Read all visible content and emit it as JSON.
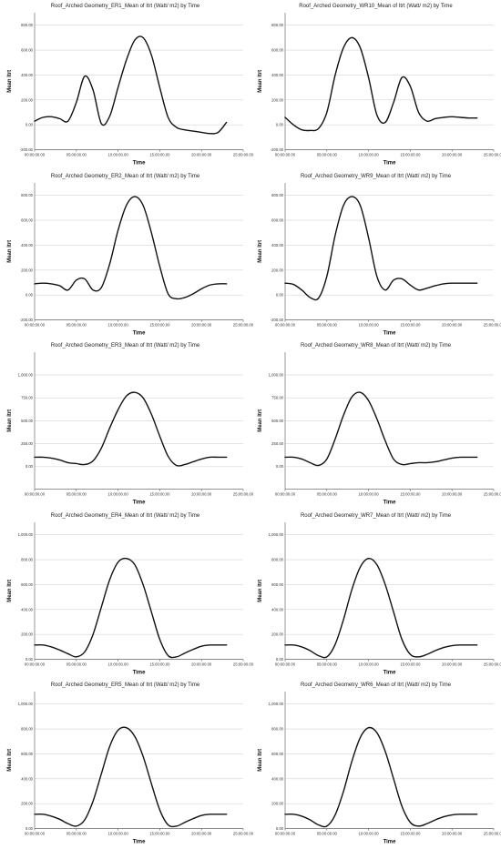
{
  "chart_data": [
    {
      "type": "line",
      "title": "Roof_Arched Geometry_ER1_Mean of Itrt (Watt/ m2) by Time",
      "xlabel": "Time",
      "ylabel": "Mean Itrt",
      "xlim": [
        0,
        25
      ],
      "ylim": [
        -200,
        900
      ],
      "yticks": [
        -200,
        0,
        200,
        400,
        600,
        800
      ],
      "ytick_labels": [
        "-200.00",
        "0.00",
        "200.00",
        "400.00",
        "600.00",
        "800.00"
      ],
      "xticks": [
        0,
        5,
        10,
        15,
        20,
        25
      ],
      "xtick_labels": [
        "00:00:00.00",
        "05:00:00.00",
        "10:00:00.00",
        "15:00:00.00",
        "20:00:00.00",
        "25:00:00.00"
      ],
      "grid": true,
      "x": [
        0,
        1,
        2,
        3,
        4,
        5,
        6,
        7,
        8,
        9,
        10,
        11,
        12,
        13,
        14,
        15,
        16,
        17,
        18,
        19,
        20,
        21,
        22,
        23
      ],
      "y": [
        30,
        60,
        65,
        50,
        30,
        180,
        390,
        280,
        10,
        70,
        300,
        520,
        680,
        700,
        560,
        300,
        60,
        -20,
        -40,
        -50,
        -60,
        -70,
        -60,
        20
      ]
    },
    {
      "type": "line",
      "title": "Roof_Arched Geometry_WR10_Mean of Itrt (Watt/ m2) by Time",
      "xlabel": "Time",
      "ylabel": "Mean Itrt",
      "xlim": [
        0,
        25
      ],
      "ylim": [
        -200,
        900
      ],
      "yticks": [
        -200,
        0,
        200,
        400,
        600,
        800
      ],
      "ytick_labels": [
        "-200.00",
        "0.00",
        "200.00",
        "400.00",
        "600.00",
        "800.00"
      ],
      "xticks": [
        0,
        5,
        10,
        15,
        20,
        25
      ],
      "xtick_labels": [
        "00:00:00.00",
        "05:00:00.00",
        "10:00:00.00",
        "15:00:00.00",
        "20:00:00.00",
        "25:00:00.00"
      ],
      "grid": true,
      "x": [
        0,
        1,
        2,
        3,
        4,
        5,
        6,
        7,
        8,
        9,
        10,
        11,
        12,
        13,
        14,
        15,
        16,
        17,
        18,
        19,
        20,
        21,
        22,
        23
      ],
      "y": [
        60,
        0,
        -40,
        -45,
        -30,
        100,
        400,
        620,
        700,
        620,
        380,
        80,
        20,
        180,
        380,
        310,
        100,
        30,
        50,
        60,
        65,
        60,
        55,
        55
      ]
    },
    {
      "type": "line",
      "title": "Roof_Arched Geometry_ER2_Mean of Itrt (Watt/ m2) by Time",
      "xlabel": "Time",
      "ylabel": "Mean Itrt",
      "xlim": [
        0,
        25
      ],
      "ylim": [
        -200,
        900
      ],
      "yticks": [
        -200,
        0,
        200,
        400,
        600,
        800
      ],
      "ytick_labels": [
        "-200.00",
        "0.00",
        "200.00",
        "400.00",
        "600.00",
        "800.00"
      ],
      "xticks": [
        0,
        5,
        10,
        15,
        20,
        25
      ],
      "xtick_labels": [
        "00:00:00.00",
        "05:00:00.00",
        "10:00:00.00",
        "15:00:00.00",
        "20:00:00.00",
        "25:00:00.00"
      ],
      "grid": true,
      "x": [
        0,
        1,
        2,
        3,
        4,
        5,
        6,
        7,
        8,
        9,
        10,
        11,
        12,
        13,
        14,
        15,
        16,
        17,
        18,
        19,
        20,
        21,
        22,
        23
      ],
      "y": [
        90,
        95,
        90,
        75,
        40,
        120,
        130,
        40,
        60,
        250,
        520,
        720,
        790,
        720,
        500,
        230,
        10,
        -30,
        -20,
        10,
        50,
        80,
        90,
        90
      ]
    },
    {
      "type": "line",
      "title": "Roof_Arched Geometry_WR9_Mean of Itrt (Watt/ m2) by Time",
      "xlabel": "Time",
      "ylabel": "Mean Itrt",
      "xlim": [
        0,
        25
      ],
      "ylim": [
        -200,
        900
      ],
      "yticks": [
        -200,
        0,
        200,
        400,
        600,
        800
      ],
      "ytick_labels": [
        "-200.00",
        "0.00",
        "200.00",
        "400.00",
        "600.00",
        "800.00"
      ],
      "xticks": [
        0,
        5,
        10,
        15,
        20,
        25
      ],
      "xtick_labels": [
        "00:00:00.00",
        "05:00:00.00",
        "10:00:00.00",
        "15:00:00.00",
        "20:00:00.00",
        "25:00:00.00"
      ],
      "grid": true,
      "x": [
        0,
        1,
        2,
        3,
        4,
        5,
        6,
        7,
        8,
        9,
        10,
        11,
        12,
        13,
        14,
        15,
        16,
        17,
        18,
        19,
        20,
        21,
        22,
        23
      ],
      "y": [
        95,
        85,
        40,
        -20,
        -25,
        150,
        480,
        720,
        790,
        720,
        460,
        150,
        40,
        120,
        130,
        80,
        40,
        55,
        75,
        90,
        95,
        95,
        95,
        95
      ]
    },
    {
      "type": "line",
      "title": "Roof_Arched Geometry_ER3_Mean of Itrt (Watt/ m2) by Time",
      "xlabel": "Time",
      "ylabel": "Mean Itrt",
      "xlim": [
        0,
        25
      ],
      "ylim": [
        -250,
        1250
      ],
      "yticks": [
        0,
        250,
        500,
        750,
        1000
      ],
      "ytick_labels": [
        "0.00",
        "250.00",
        "500.00",
        "750.00",
        "1,000.00"
      ],
      "xticks": [
        0,
        5,
        10,
        15,
        20,
        25
      ],
      "xtick_labels": [
        "00:00:00.00",
        "05:00:00.00",
        "10:00:00.00",
        "15:00:00.00",
        "20:00:00.00",
        "25:00:00.00"
      ],
      "grid": true,
      "x": [
        0,
        1,
        2,
        3,
        4,
        5,
        6,
        7,
        8,
        9,
        10,
        11,
        12,
        13,
        14,
        15,
        16,
        17,
        18,
        19,
        20,
        21,
        22,
        23
      ],
      "y": [
        100,
        100,
        90,
        70,
        40,
        30,
        20,
        60,
        200,
        420,
        620,
        770,
        810,
        750,
        570,
        330,
        110,
        10,
        20,
        50,
        80,
        100,
        100,
        100
      ]
    },
    {
      "type": "line",
      "title": "Roof_Arched Geometry_WR8_Mean of Itrt (Watt/ m2) by Time",
      "xlabel": "Time",
      "ylabel": "Mean Itrt",
      "xlim": [
        0,
        25
      ],
      "ylim": [
        -250,
        1250
      ],
      "yticks": [
        0,
        250,
        500,
        750,
        1000
      ],
      "ytick_labels": [
        "0.00",
        "250.00",
        "500.00",
        "750.00",
        "1,000.00"
      ],
      "xticks": [
        0,
        5,
        10,
        15,
        20,
        25
      ],
      "xtick_labels": [
        "00:00:00.00",
        "05:00:00.00",
        "10:00:00.00",
        "15:00:00.00",
        "20:00:00.00",
        "25:00:00.00"
      ],
      "grid": true,
      "x": [
        0,
        1,
        2,
        3,
        4,
        5,
        6,
        7,
        8,
        9,
        10,
        11,
        12,
        13,
        14,
        15,
        16,
        17,
        18,
        19,
        20,
        21,
        22,
        23
      ],
      "y": [
        100,
        100,
        80,
        40,
        10,
        80,
        300,
        560,
        760,
        810,
        720,
        520,
        280,
        80,
        20,
        30,
        40,
        40,
        50,
        70,
        90,
        100,
        100,
        100
      ]
    },
    {
      "type": "line",
      "title": "Roof_Arched Geometry_ER4_Mean of Itrt (Watt/ m2) by Time",
      "xlabel": "Time",
      "ylabel": "Mean Itrt",
      "xlim": [
        0,
        25
      ],
      "ylim": [
        0,
        1100
      ],
      "yticks": [
        0,
        200,
        400,
        600,
        800,
        1000
      ],
      "ytick_labels": [
        "0.00",
        "200.00",
        "400.00",
        "600.00",
        "800.00",
        "1,000.00"
      ],
      "xticks": [
        0,
        5,
        10,
        15,
        20,
        25
      ],
      "xtick_labels": [
        "00:00:00.00",
        "05:00:00.00",
        "10:00:00.00",
        "15:00:00.00",
        "20:00:00.00",
        "25:00:00.00"
      ],
      "grid": true,
      "x": [
        0,
        1,
        2,
        3,
        4,
        5,
        6,
        7,
        8,
        9,
        10,
        11,
        12,
        13,
        14,
        15,
        16,
        17,
        18,
        19,
        20,
        21,
        22,
        23
      ],
      "y": [
        115,
        115,
        100,
        75,
        45,
        20,
        60,
        200,
        420,
        640,
        780,
        810,
        760,
        600,
        380,
        160,
        30,
        20,
        50,
        80,
        105,
        115,
        115,
        115
      ]
    },
    {
      "type": "line",
      "title": "Roof_Arched Geometry_WR7_Mean of Itrt (Watt/ m2) by Time",
      "xlabel": "Time",
      "ylabel": "Mean Itrt",
      "xlim": [
        0,
        25
      ],
      "ylim": [
        0,
        1100
      ],
      "yticks": [
        0,
        200,
        400,
        600,
        800,
        1000
      ],
      "ytick_labels": [
        "0.00",
        "200.00",
        "400.00",
        "600.00",
        "800.00",
        "1,000.00"
      ],
      "xticks": [
        0,
        5,
        10,
        15,
        20,
        25
      ],
      "xtick_labels": [
        "00:00:00.00",
        "05:00:00.00",
        "10:00:00.00",
        "15:00:00.00",
        "20:00:00.00",
        "25:00:00.00"
      ],
      "grid": true,
      "x": [
        0,
        1,
        2,
        3,
        4,
        5,
        6,
        7,
        8,
        9,
        10,
        11,
        12,
        13,
        14,
        15,
        16,
        17,
        18,
        19,
        20,
        21,
        22,
        23
      ],
      "y": [
        115,
        115,
        100,
        70,
        30,
        20,
        120,
        320,
        560,
        740,
        810,
        760,
        600,
        380,
        160,
        40,
        20,
        40,
        70,
        95,
        110,
        115,
        115,
        115
      ]
    },
    {
      "type": "line",
      "title": "Roof_Arched Geometry_ER5_Mean of Itrt (Watt/ m2) by Time",
      "xlabel": "Time",
      "ylabel": "Mean Itrt",
      "xlim": [
        0,
        25
      ],
      "ylim": [
        0,
        1100
      ],
      "yticks": [
        0,
        200,
        400,
        600,
        800,
        1000
      ],
      "ytick_labels": [
        "0.00",
        "200.00",
        "400.00",
        "600.00",
        "800.00",
        "1,000.00"
      ],
      "xticks": [
        0,
        5,
        10,
        15,
        20,
        25
      ],
      "xtick_labels": [
        "00:00:00.00",
        "05:00:00.00",
        "10:00:00.00",
        "15:00:00.00",
        "20:00:00.00",
        "25:00:00.00"
      ],
      "grid": true,
      "x": [
        0,
        1,
        2,
        3,
        4,
        5,
        6,
        7,
        8,
        9,
        10,
        11,
        12,
        13,
        14,
        15,
        16,
        17,
        18,
        19,
        20,
        21,
        22,
        23
      ],
      "y": [
        115,
        115,
        100,
        75,
        40,
        20,
        70,
        220,
        440,
        660,
        790,
        810,
        740,
        580,
        360,
        150,
        30,
        20,
        50,
        80,
        105,
        115,
        115,
        115
      ]
    },
    {
      "type": "line",
      "title": "Roof_Arched Geometry_WR6_Mean of Itrt (Watt/ m2) by Time",
      "xlabel": "Time",
      "ylabel": "Mean Itrt",
      "xlim": [
        0,
        25
      ],
      "ylim": [
        0,
        1100
      ],
      "yticks": [
        0,
        200,
        400,
        600,
        800,
        1000
      ],
      "ytick_labels": [
        "0.00",
        "200.00",
        "400.00",
        "600.00",
        "800.00",
        "1,000.00"
      ],
      "xticks": [
        0,
        5,
        10,
        15,
        20,
        25
      ],
      "xtick_labels": [
        "00:00:00.00",
        "05:00:00.00",
        "10:00:00.00",
        "15:00:00.00",
        "20:00:00.00",
        "25:00:00.00"
      ],
      "grid": true,
      "x": [
        0,
        1,
        2,
        3,
        4,
        5,
        6,
        7,
        8,
        9,
        10,
        11,
        12,
        13,
        14,
        15,
        16,
        17,
        18,
        19,
        20,
        21,
        22,
        23
      ],
      "y": [
        115,
        115,
        100,
        70,
        30,
        20,
        110,
        300,
        540,
        730,
        810,
        770,
        620,
        400,
        180,
        50,
        20,
        40,
        70,
        95,
        110,
        115,
        115,
        115
      ]
    }
  ]
}
